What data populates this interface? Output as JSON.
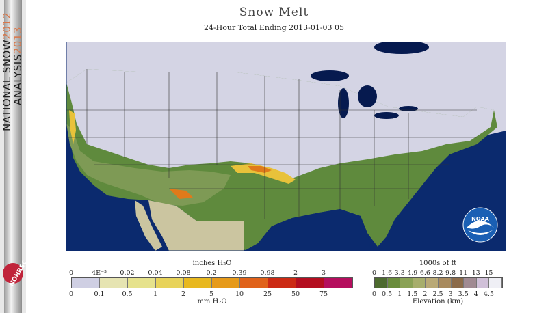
{
  "banner": {
    "line1_prefix": "NATIONAL SNOW",
    "line1_year": "2012",
    "line2_prefix": "ANALYSIS",
    "line2_year": "2013",
    "logo_text": "NOHRSC"
  },
  "title": "Snow Melt",
  "subtitle": "24-Hour Total Ending 2013-01-03 05",
  "map": {
    "colors": {
      "ocean": "#0b2a6e",
      "snow": "#d4d4e4",
      "land_low": "#5f8a3d",
      "land_mid": "#7e9a55",
      "land_high": "#c9c29a",
      "mexico": "#cbc5a0",
      "lakes": "#061a4f",
      "melt_yellow": "#e8c23a",
      "melt_orange": "#e07a1a",
      "state_lines": "#333333"
    }
  },
  "noaa_logo": {
    "label": "NOAA"
  },
  "snow_legend": {
    "title_top": "inches H₂O",
    "title_bottom": "mm H₂O",
    "inches_labels": [
      "0",
      "4E⁻³",
      "0.02",
      "0.04",
      "0.08",
      "0.2",
      "0.39",
      "0.98",
      "2",
      "3"
    ],
    "mm_labels": [
      "0",
      "0.1",
      "0.5",
      "1",
      "2",
      "5",
      "10",
      "25",
      "50",
      "75"
    ],
    "colors": [
      "#cfcfe3",
      "#e6e4b2",
      "#e6e28c",
      "#e8d35a",
      "#e8b81f",
      "#e69a1a",
      "#e0621a",
      "#cc2a14",
      "#b40e20",
      "#b50e5e"
    ]
  },
  "elev_legend": {
    "title_top": "1000s of ft",
    "title_bottom": "Elevation (km)",
    "ft_labels": [
      "0",
      "1.6",
      "3.3",
      "4.9",
      "6.6",
      "8.2",
      "9.8",
      "11",
      "13",
      "15"
    ],
    "km_labels": [
      "0",
      "0.5",
      "1",
      "1.5",
      "2",
      "2.5",
      "3",
      "3.5",
      "4",
      "4.5"
    ],
    "colors": [
      "#4d6b2f",
      "#6a8c3c",
      "#8aa256",
      "#a7ae6c",
      "#b9a976",
      "#a88a5e",
      "#8c6b4a",
      "#a08a92",
      "#d0c0d8",
      "#efeff5"
    ]
  }
}
